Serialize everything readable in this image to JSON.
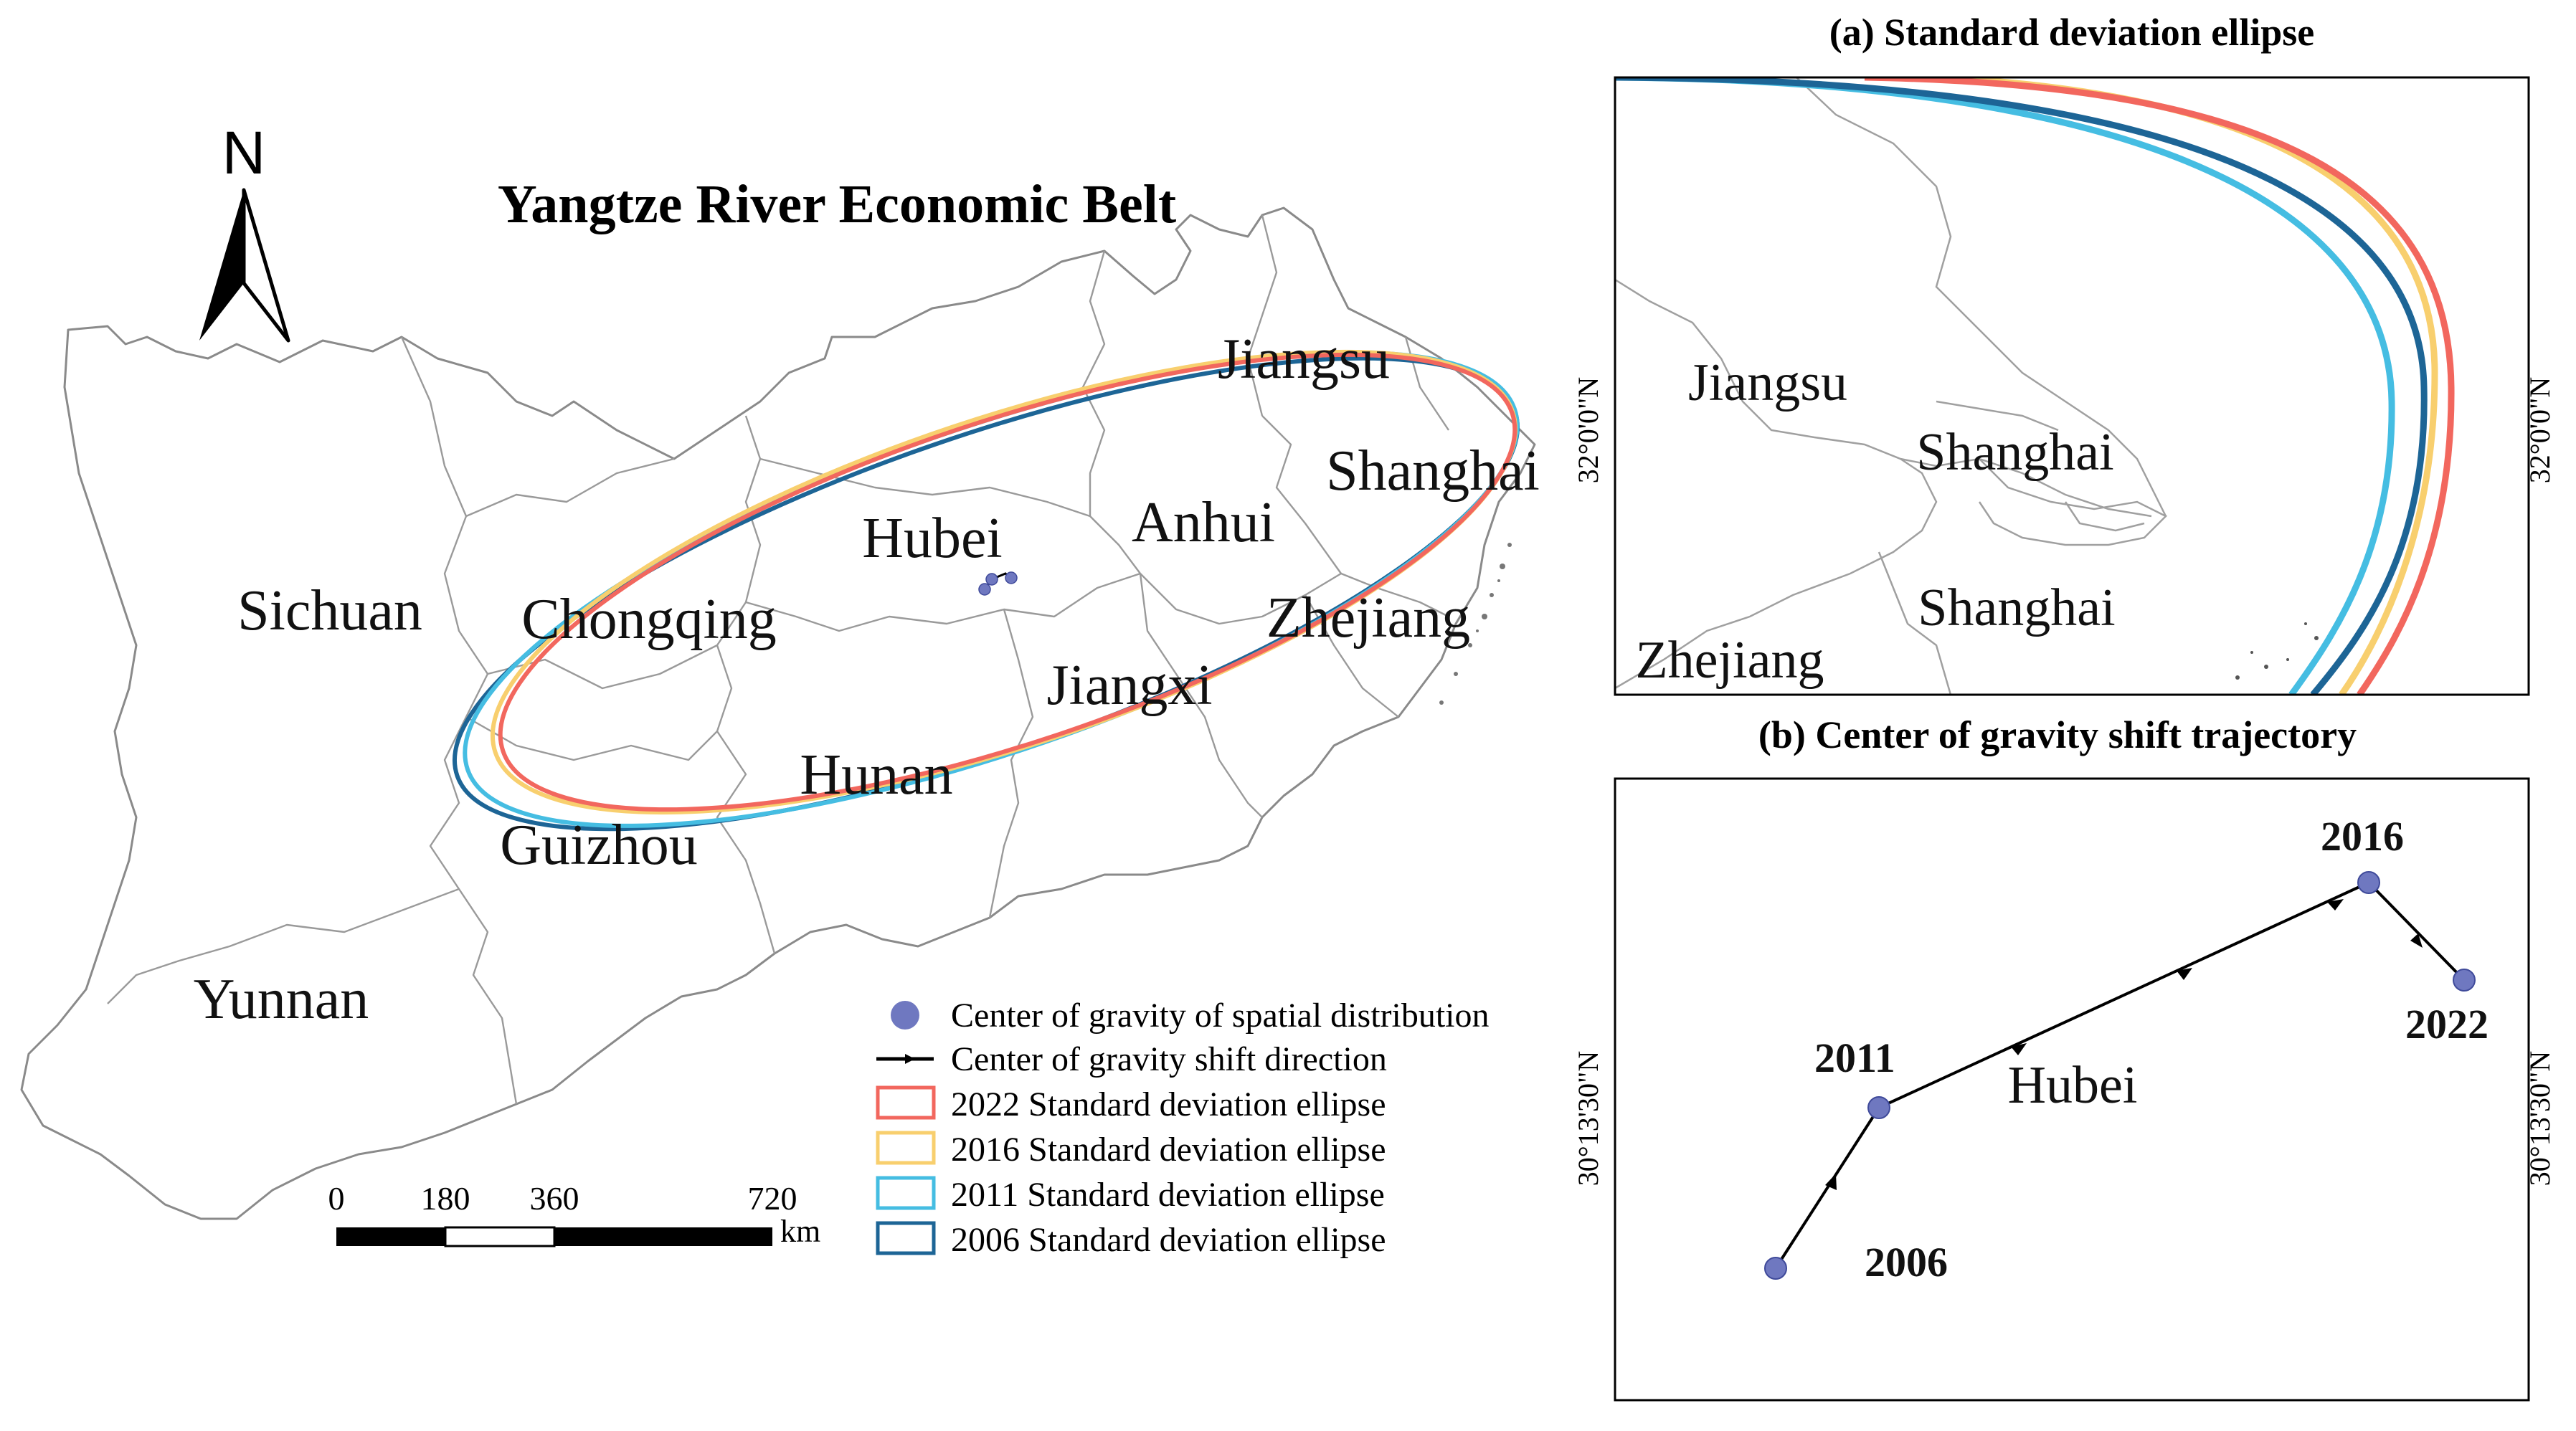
{
  "main_map": {
    "title": "Yangtze River Economic Belt",
    "north_label": "N",
    "provinces": [
      "Sichuan",
      "Yunnan",
      "Guizhou",
      "Chongqing",
      "Hubei",
      "Hunan",
      "Jiangxi",
      "Anhui",
      "Jiangsu",
      "Shanghai",
      "Zhejiang"
    ],
    "scale_bar": {
      "ticks": [
        "0",
        "180",
        "360",
        "720"
      ],
      "unit": "km"
    },
    "legend": [
      {
        "label": "Center of gravity of spatial distribution",
        "symbol": "point",
        "color": "#6f78c0"
      },
      {
        "label": "Center of gravity shift direction",
        "symbol": "arrow-line",
        "color": "#000000"
      },
      {
        "label": "2022 Standard deviation ellipse",
        "symbol": "ellipse",
        "color": "#f2675e"
      },
      {
        "label": "2016 Standard deviation ellipse",
        "symbol": "ellipse",
        "color": "#f8cf6e"
      },
      {
        "label": "2011 Standard deviation ellipse",
        "symbol": "ellipse",
        "color": "#45bde2"
      },
      {
        "label": "2006 Standard deviation ellipse",
        "symbol": "ellipse",
        "color": "#1d6596"
      }
    ]
  },
  "inset_a": {
    "title": "(a) Standard deviation ellipse",
    "labels": [
      "Jiangsu",
      "Shanghai",
      "Shanghai",
      "Zhejiang"
    ],
    "lat_label": "32°0'0\"N"
  },
  "inset_b": {
    "title": "(b) Center of gravity shift trajectory",
    "region_label": "Hubei",
    "lat_label": "30°13'30\"N",
    "points": [
      {
        "year": "2006",
        "order": 1
      },
      {
        "year": "2011",
        "order": 2
      },
      {
        "year": "2016",
        "order": 3
      },
      {
        "year": "2022",
        "order": 4
      }
    ]
  },
  "colors": {
    "e2022": "#f2675e",
    "e2016": "#f8cf6e",
    "e2011": "#45bde2",
    "e2006": "#1d6596",
    "gravity_point": "#6f78c0",
    "boundary": "#7a7a7a"
  }
}
